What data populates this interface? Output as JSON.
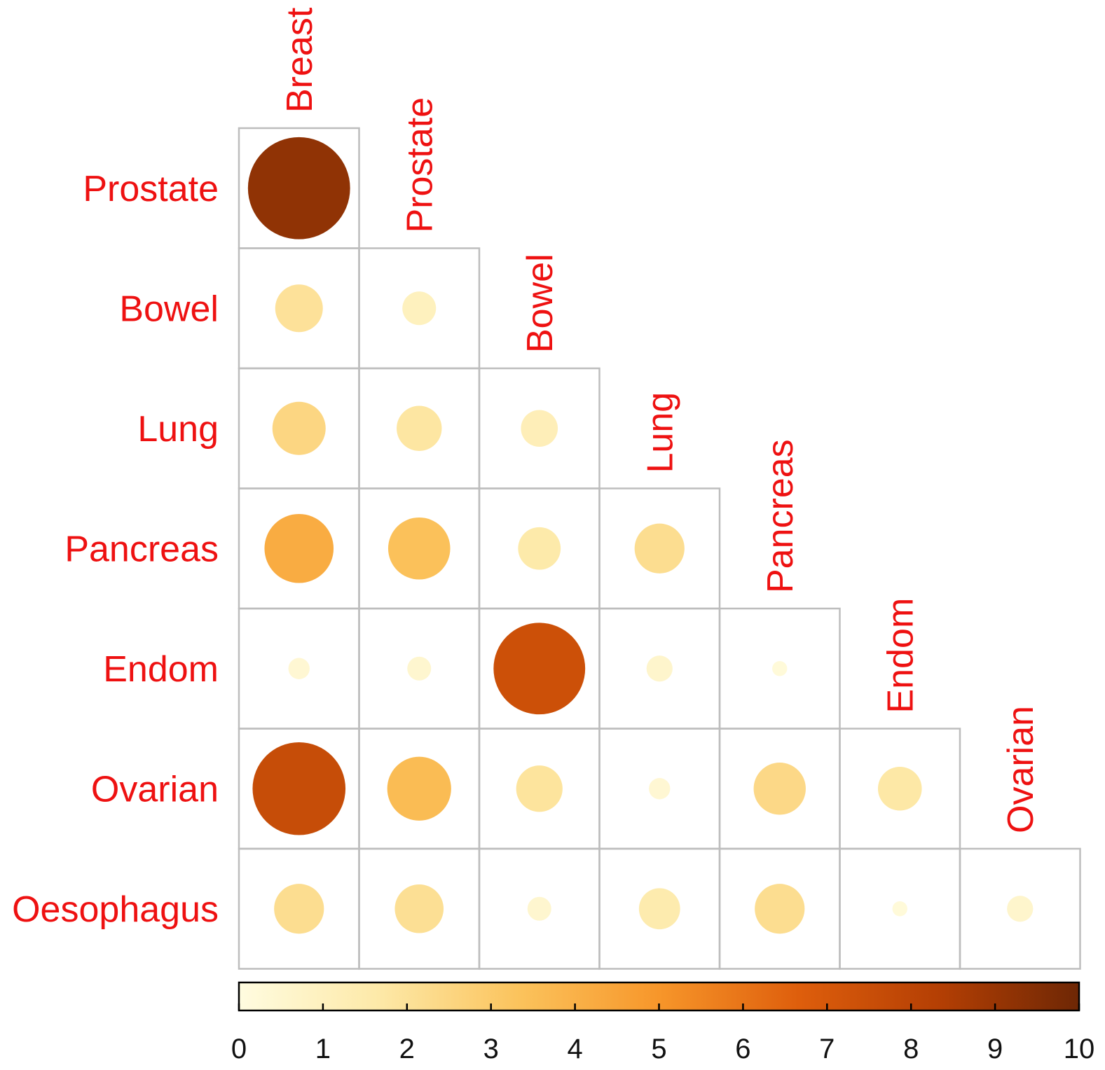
{
  "chart_data": {
    "type": "heatmap",
    "subtype": "lower-triangular correlation bubble plot",
    "row_labels": [
      "Prostate",
      "Bowel",
      "Lung",
      "Pancreas",
      "Endom",
      "Ovarian",
      "Oesophagus"
    ],
    "col_labels": [
      "Breast",
      "Prostate",
      "Bowel",
      "Lung",
      "Pancreas",
      "Endom",
      "Ovarian"
    ],
    "values": [
      [
        9.2,
        null,
        null,
        null,
        null,
        null,
        null
      ],
      [
        2.0,
        1.0,
        null,
        null,
        null,
        null,
        null
      ],
      [
        2.5,
        1.8,
        1.2,
        null,
        null,
        null,
        null
      ],
      [
        4.2,
        3.4,
        1.6,
        2.2,
        null,
        null,
        null
      ],
      [
        0.4,
        0.5,
        7.4,
        0.6,
        0.2,
        null,
        null
      ],
      [
        7.6,
        3.6,
        1.9,
        0.4,
        2.4,
        1.7,
        null
      ],
      [
        2.2,
        2.1,
        0.5,
        1.5,
        2.2,
        0.2,
        0.6
      ]
    ],
    "colorbar": {
      "min": 0,
      "max": 10,
      "ticks": [
        "0",
        "1",
        "2",
        "3",
        "4",
        "5",
        "6",
        "7",
        "8",
        "9",
        "10"
      ],
      "colors": [
        "#fffce0",
        "#fde9a8",
        "#fbc35c",
        "#f7962a",
        "#de5e0c",
        "#b43f04",
        "#6e2705"
      ]
    },
    "label_color": "#ee1111",
    "grid": true
  }
}
